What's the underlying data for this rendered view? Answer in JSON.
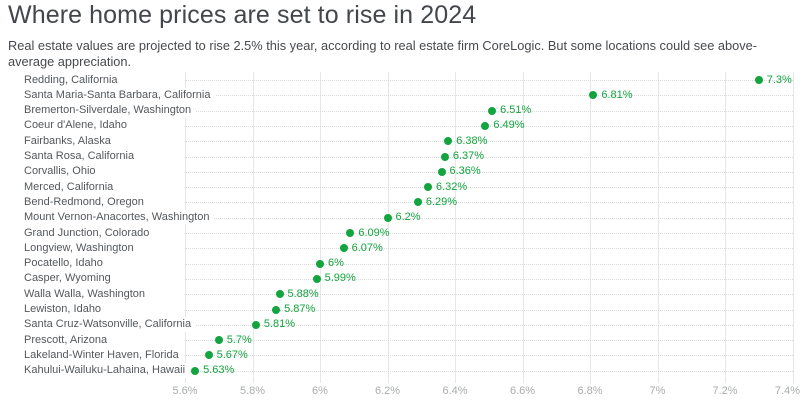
{
  "header": {
    "title": "Where home prices are set to rise in 2024",
    "subtitle": "Real estate values are projected to rise 2.5% this year, according to real estate firm CoreLogic. But some locations could see above-average appreciation."
  },
  "chart_data": {
    "type": "scatter",
    "variant": "horizontal-dot-plot",
    "title": "Where home prices are set to rise in 2024",
    "xlabel": "",
    "ylabel": "",
    "xlim": [
      5.6,
      7.4
    ],
    "grid": {
      "vertical": "solid",
      "horizontal": "dotted-per-row"
    },
    "legend": "none",
    "x_ticks": [
      {
        "value": 5.6,
        "label": "5.6%"
      },
      {
        "value": 5.8,
        "label": "5.8%"
      },
      {
        "value": 6.0,
        "label": "6%"
      },
      {
        "value": 6.2,
        "label": "6.2%"
      },
      {
        "value": 6.4,
        "label": "6.4%"
      },
      {
        "value": 6.6,
        "label": "6.6%"
      },
      {
        "value": 6.8,
        "label": "6.8%"
      },
      {
        "value": 7.0,
        "label": "7%"
      },
      {
        "value": 7.2,
        "label": "7.2%"
      },
      {
        "value": 7.4,
        "label": "7.4%"
      }
    ],
    "points": [
      {
        "label": "Redding, California",
        "value": 7.3,
        "value_label": "7.3%"
      },
      {
        "label": "Santa Maria-Santa Barbara, California",
        "value": 6.81,
        "value_label": "6.81%"
      },
      {
        "label": "Bremerton-Silverdale, Washington",
        "value": 6.51,
        "value_label": "6.51%"
      },
      {
        "label": "Coeur d'Alene, Idaho",
        "value": 6.49,
        "value_label": "6.49%"
      },
      {
        "label": "Fairbanks, Alaska",
        "value": 6.38,
        "value_label": "6.38%"
      },
      {
        "label": "Santa Rosa, California",
        "value": 6.37,
        "value_label": "6.37%"
      },
      {
        "label": "Corvallis, Ohio",
        "value": 6.36,
        "value_label": "6.36%"
      },
      {
        "label": "Merced, California",
        "value": 6.32,
        "value_label": "6.32%"
      },
      {
        "label": "Bend-Redmond, Oregon",
        "value": 6.29,
        "value_label": "6.29%"
      },
      {
        "label": "Mount Vernon-Anacortes, Washington",
        "value": 6.2,
        "value_label": "6.2%"
      },
      {
        "label": "Grand Junction, Colorado",
        "value": 6.09,
        "value_label": "6.09%"
      },
      {
        "label": "Longview, Washington",
        "value": 6.07,
        "value_label": "6.07%"
      },
      {
        "label": "Pocatello, Idaho",
        "value": 6.0,
        "value_label": "6%"
      },
      {
        "label": "Casper, Wyoming",
        "value": 5.99,
        "value_label": "5.99%"
      },
      {
        "label": "Walla Walla, Washington",
        "value": 5.88,
        "value_label": "5.88%"
      },
      {
        "label": "Lewiston, Idaho",
        "value": 5.87,
        "value_label": "5.87%"
      },
      {
        "label": "Santa Cruz-Watsonville, California",
        "value": 5.81,
        "value_label": "5.81%"
      },
      {
        "label": "Prescott, Arizona",
        "value": 5.7,
        "value_label": "5.7%"
      },
      {
        "label": "Lakeland-Winter Haven, Florida",
        "value": 5.67,
        "value_label": "5.67%"
      },
      {
        "label": "Kahului-Wailuku-Lahaina, Hawaii",
        "value": 5.63,
        "value_label": "5.63%"
      }
    ],
    "colors": {
      "dot": "#12a43e",
      "value_label": "#12a43e",
      "category_label": "#54585c",
      "axis_label": "#a9acae",
      "vertical_gridline": "#e6e7e8",
      "row_dotted_line": "#d9dadb",
      "title": "#43474b",
      "subtitle": "#46494d",
      "background": "#ffffff"
    }
  }
}
